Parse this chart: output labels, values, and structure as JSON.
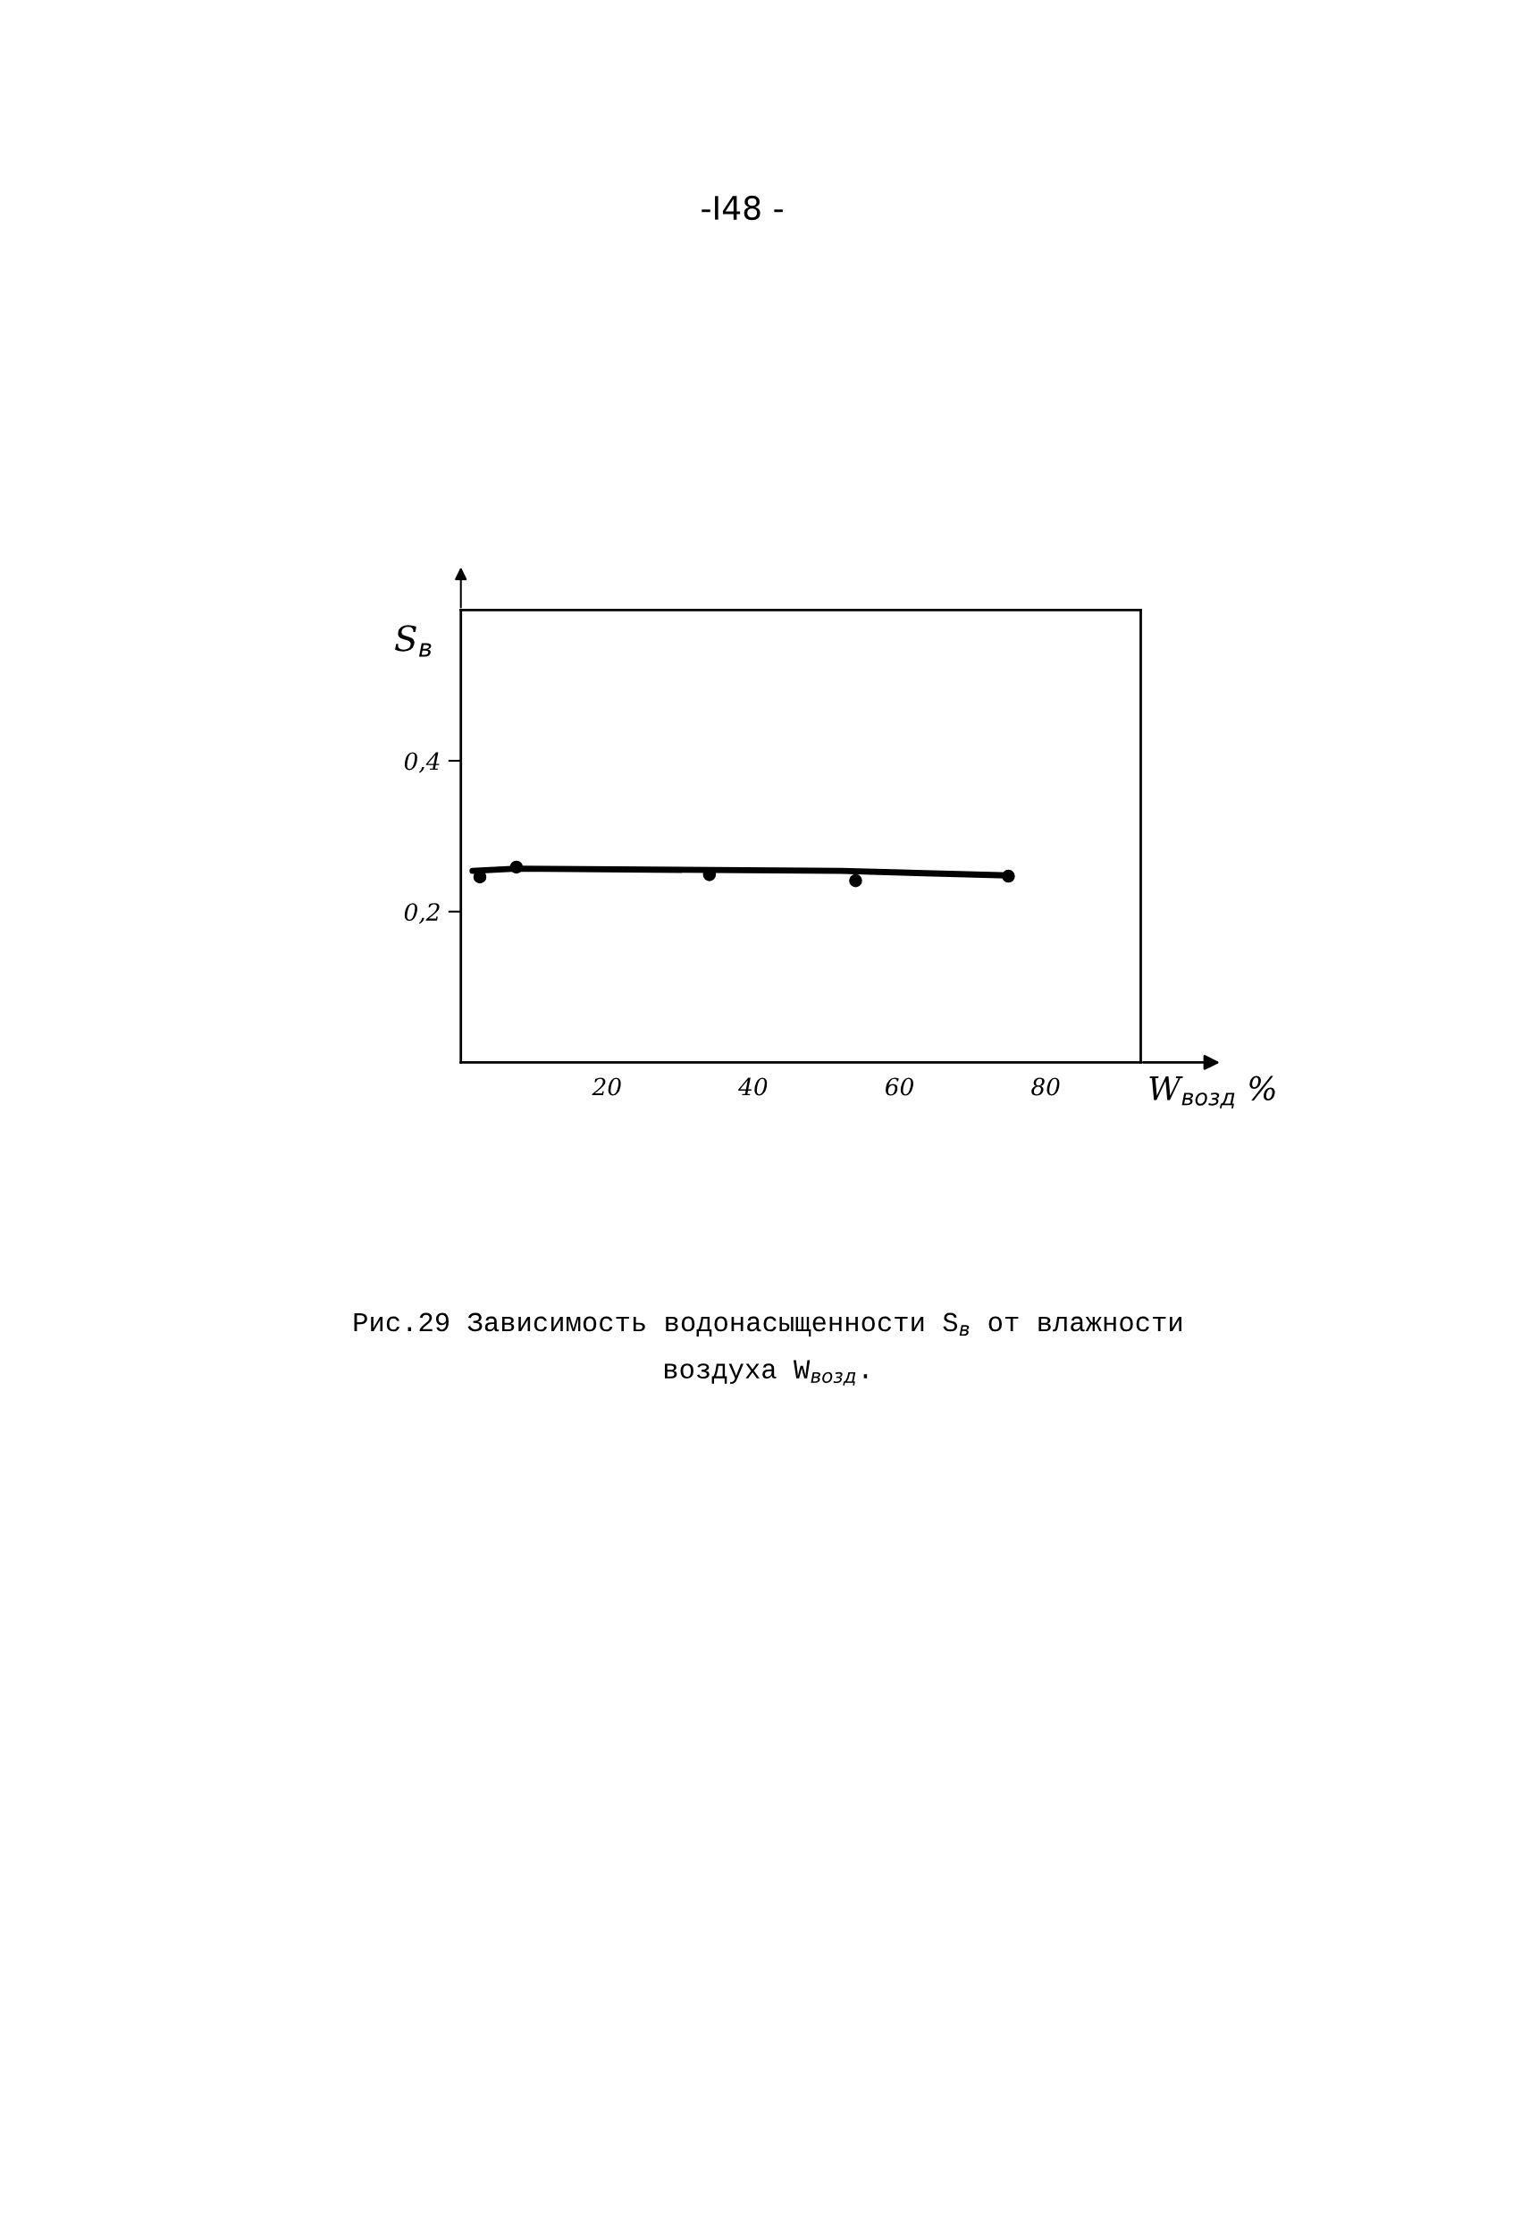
{
  "chart_data": {
    "type": "scatter",
    "xlabel": "W$_{возд}$ %",
    "ylabel": "S$_{в}$",
    "annotations": [
      "-I48 -",
      "Рис.29 Зависимость водонасыщенности S$_{в}$ от влажности",
      "воздуха W$_{возд}$."
    ],
    "series": [
      {
        "color": "#000000",
        "marker": "circle",
        "x": [
          2.6,
          7.6,
          34,
          54,
          74.9
        ],
        "values": [
          0.246,
          0.259,
          0.249,
          0.241,
          0.247
        ]
      },
      {
        "type": "line",
        "color": "#000000",
        "marker": "none",
        "line_style": "solid",
        "x": [
          1.6,
          7.6,
          52,
          74.9
        ],
        "values": [
          0.254,
          0.257,
          0.254,
          0.248
        ]
      }
    ],
    "xlim": [
      0,
      93
    ],
    "ylim": [
      0,
      0.6
    ],
    "xticks": [
      20,
      40,
      60,
      80
    ],
    "yticks": [
      {
        "value": 0.2,
        "label": "0,2"
      },
      {
        "value": 0.4,
        "label": "0,4"
      }
    ],
    "grid": false,
    "legend": false
  }
}
